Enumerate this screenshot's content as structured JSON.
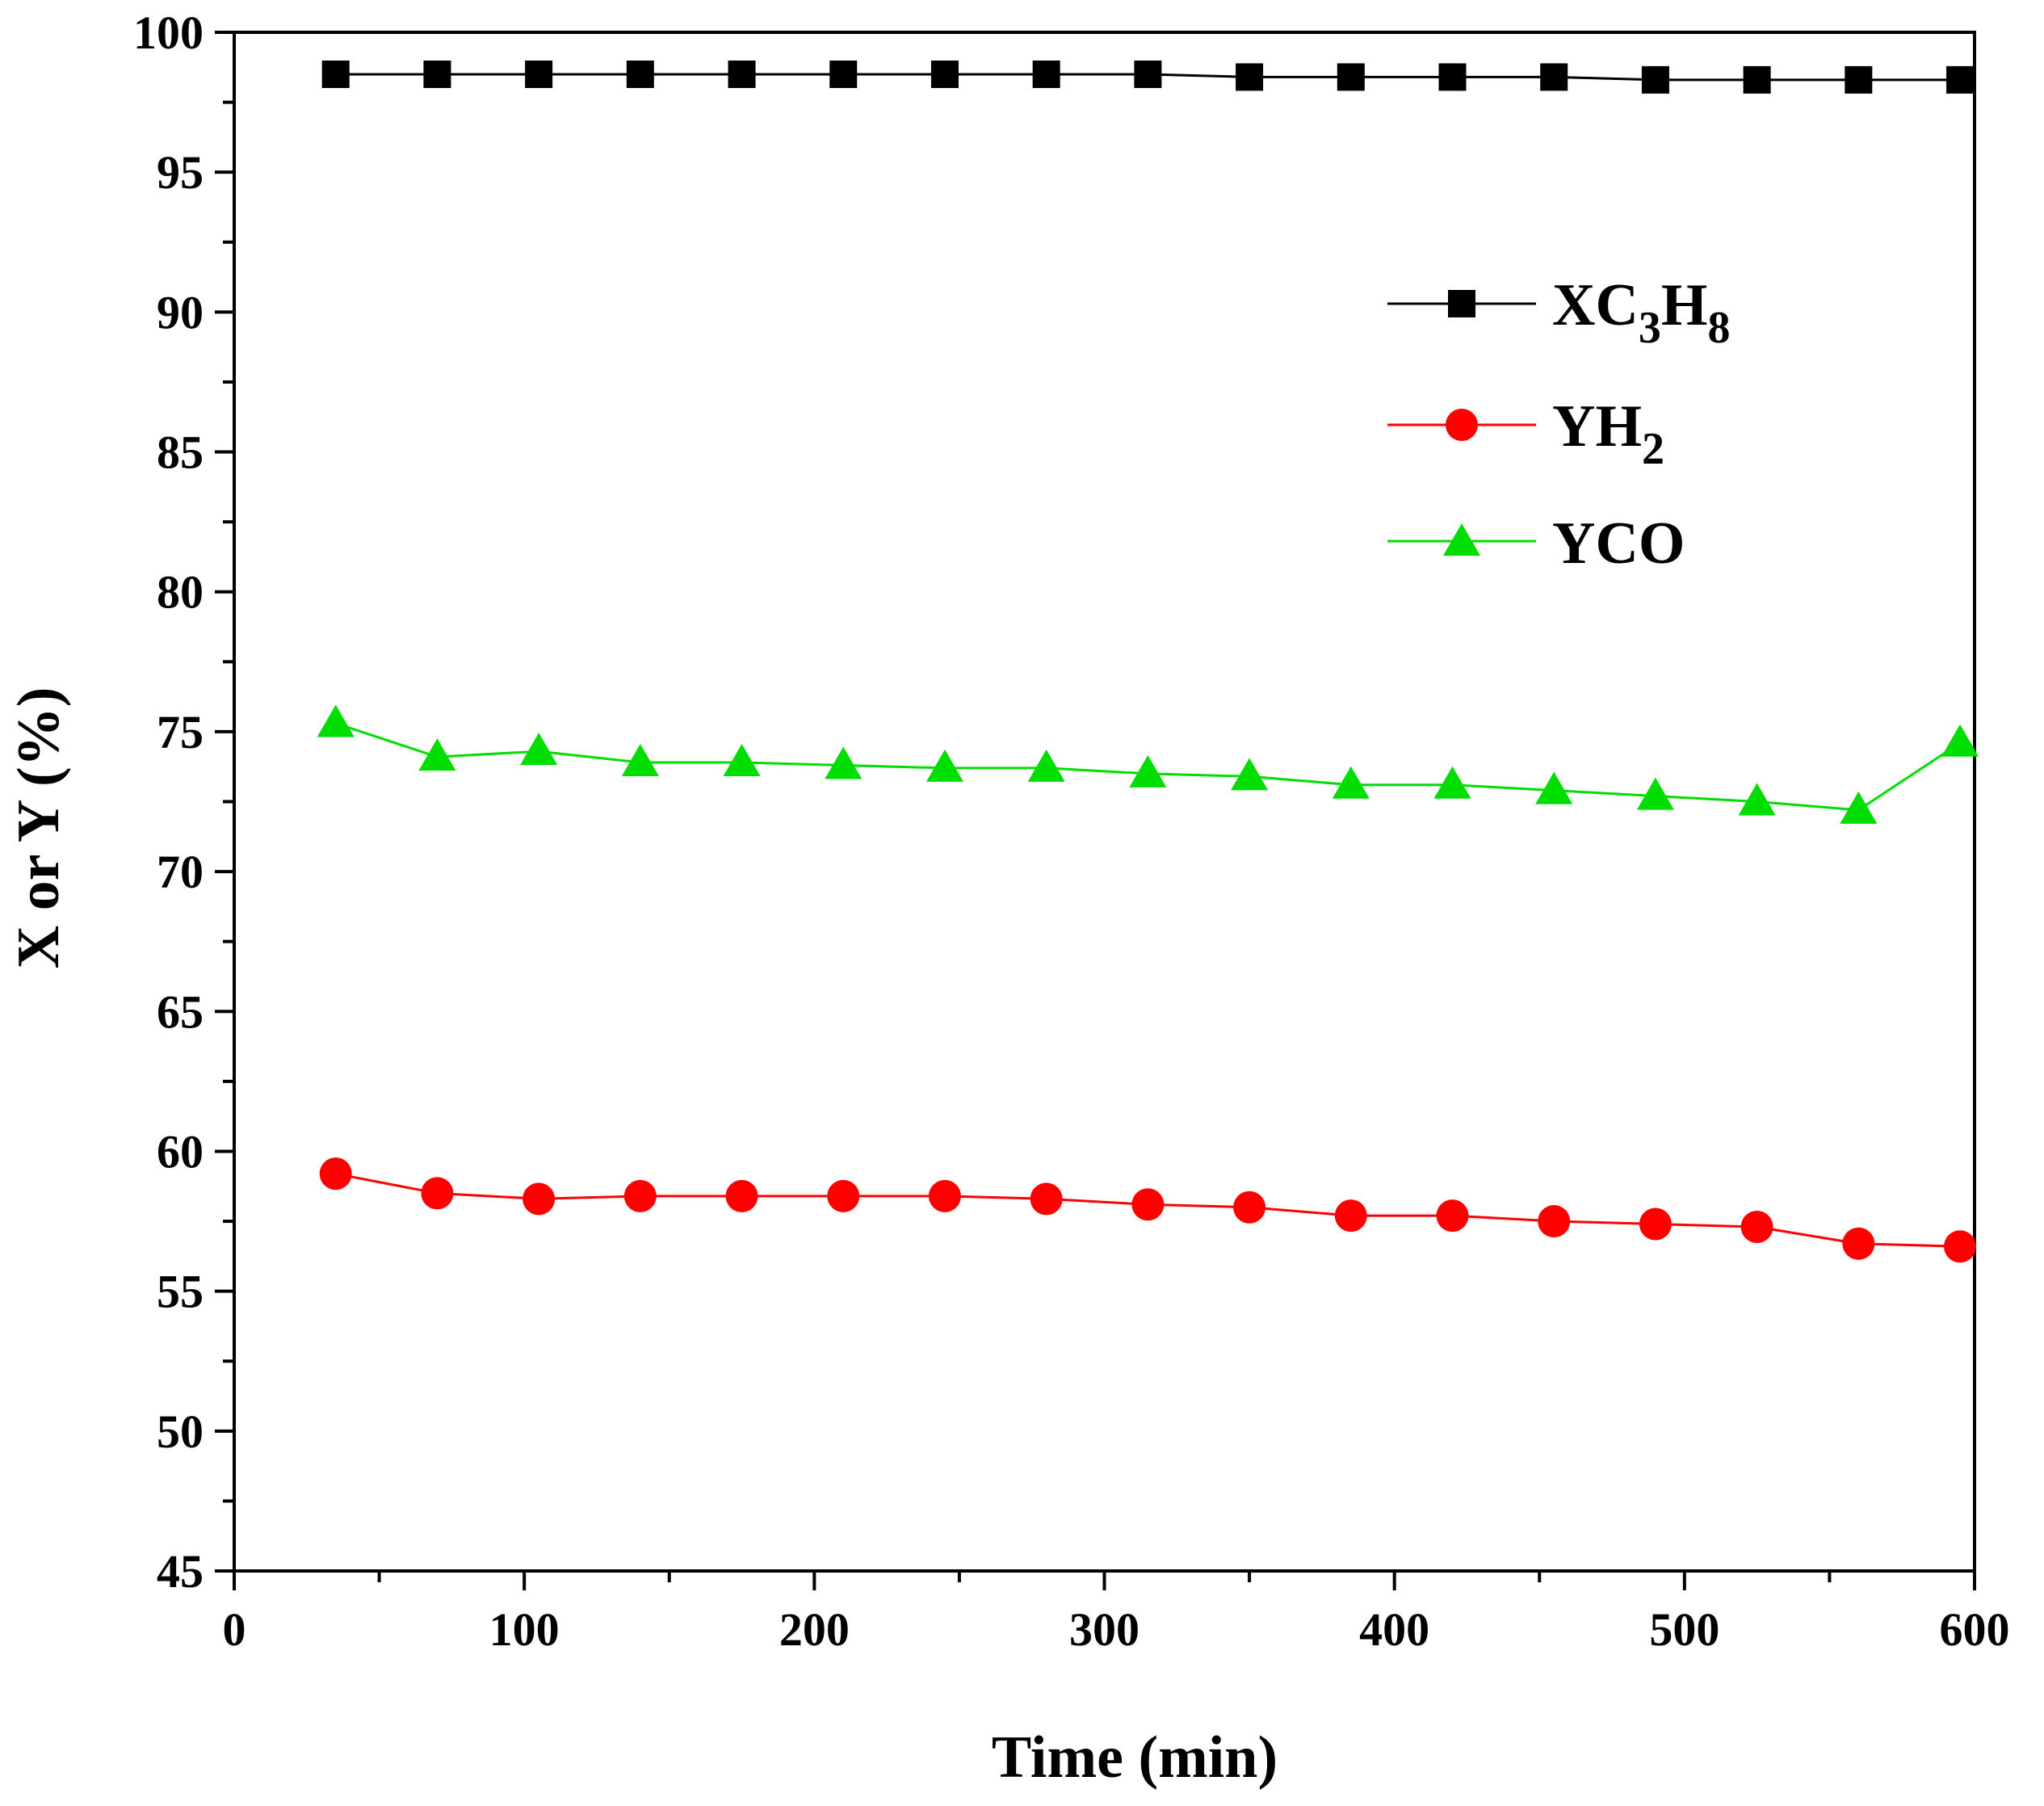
{
  "chart_data": {
    "type": "line",
    "title": "",
    "xlabel": "Time (min)",
    "ylabel": "X or Y (%)",
    "xlim": [
      0,
      600
    ],
    "ylim": [
      45,
      100
    ],
    "x_ticks": [
      "0",
      "100",
      "200",
      "300",
      "400",
      "500",
      "600"
    ],
    "y_ticks": [
      "45",
      "50",
      "55",
      "60",
      "65",
      "70",
      "75",
      "80",
      "85",
      "90",
      "95",
      "100"
    ],
    "grid": false,
    "legend_position": "top-right",
    "x": [
      35,
      70,
      105,
      140,
      175,
      210,
      245,
      280,
      315,
      350,
      385,
      420,
      455,
      490,
      525,
      560,
      595
    ],
    "series": [
      {
        "name": "XC3H8",
        "label_main": "XC",
        "label_sub1": "3",
        "label_mid": "H",
        "label_sub2": "8",
        "color": "#000000",
        "marker": "square",
        "values": [
          98.5,
          98.5,
          98.5,
          98.5,
          98.5,
          98.5,
          98.5,
          98.5,
          98.5,
          98.4,
          98.4,
          98.4,
          98.4,
          98.3,
          98.3,
          98.3,
          98.3
        ]
      },
      {
        "name": "YH2",
        "label_main": "YH",
        "label_sub1": "2",
        "color": "#ff0000",
        "marker": "circle",
        "values": [
          59.2,
          58.5,
          58.3,
          58.4,
          58.4,
          58.4,
          58.4,
          58.3,
          58.1,
          58.0,
          57.7,
          57.7,
          57.5,
          57.4,
          57.3,
          56.7,
          56.6
        ]
      },
      {
        "name": "YCO",
        "label_main": "YCO",
        "color": "#00dd00",
        "marker": "triangle",
        "values": [
          75.3,
          74.1,
          74.3,
          73.9,
          73.9,
          73.8,
          73.7,
          73.7,
          73.5,
          73.4,
          73.1,
          73.1,
          72.9,
          72.7,
          72.5,
          72.2,
          74.6
        ]
      }
    ]
  }
}
